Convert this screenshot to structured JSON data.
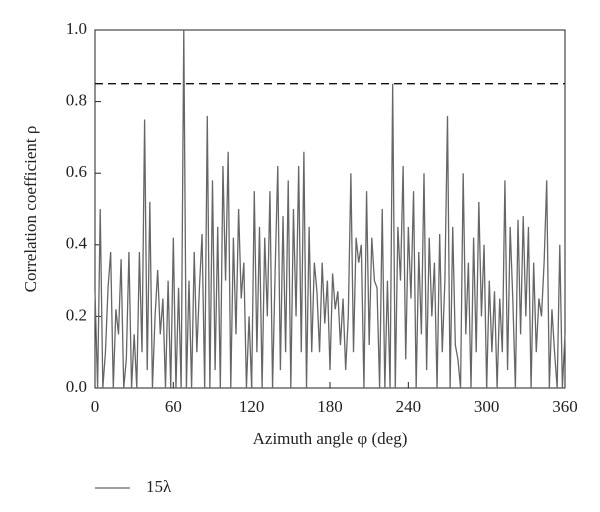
{
  "chart_data": {
    "type": "line",
    "xlabel": "Azimuth angle φ (deg)",
    "ylabel": "Correlation coefficient ρ",
    "x": [
      0,
      2,
      4,
      6,
      8,
      10,
      12,
      14,
      16,
      18,
      20,
      22,
      24,
      26,
      28,
      30,
      32,
      34,
      36,
      38,
      40,
      42,
      44,
      46,
      48,
      50,
      52,
      54,
      56,
      58,
      60,
      62,
      64,
      66,
      68,
      70,
      72,
      74,
      76,
      78,
      80,
      82,
      84,
      86,
      88,
      90,
      92,
      94,
      96,
      98,
      100,
      102,
      104,
      106,
      108,
      110,
      112,
      114,
      116,
      118,
      120,
      122,
      124,
      126,
      128,
      130,
      132,
      134,
      136,
      138,
      140,
      142,
      144,
      146,
      148,
      150,
      152,
      154,
      156,
      158,
      160,
      162,
      164,
      166,
      168,
      170,
      172,
      174,
      176,
      178,
      180,
      182,
      184,
      186,
      188,
      190,
      192,
      194,
      196,
      198,
      200,
      202,
      204,
      206,
      208,
      210,
      212,
      214,
      216,
      218,
      220,
      222,
      224,
      226,
      228,
      230,
      232,
      234,
      236,
      238,
      240,
      242,
      244,
      246,
      248,
      250,
      252,
      254,
      256,
      258,
      260,
      262,
      264,
      266,
      268,
      270,
      272,
      274,
      276,
      278,
      280,
      282,
      284,
      286,
      288,
      290,
      292,
      294,
      296,
      298,
      300,
      302,
      304,
      306,
      308,
      310,
      312,
      314,
      316,
      318,
      320,
      322,
      324,
      326,
      328,
      330,
      332,
      334,
      336,
      338,
      340,
      342,
      344,
      346,
      348,
      350,
      352,
      354,
      356,
      358,
      360
    ],
    "series": [
      {
        "name": "15λ",
        "color": "#666666",
        "values": [
          0.27,
          0.0,
          0.5,
          0.0,
          0.1,
          0.28,
          0.38,
          0.0,
          0.22,
          0.15,
          0.36,
          0.0,
          0.08,
          0.38,
          0.0,
          0.15,
          0.0,
          0.38,
          0.1,
          0.75,
          0.05,
          0.52,
          0.0,
          0.2,
          0.33,
          0.15,
          0.25,
          0.0,
          0.3,
          0.0,
          0.42,
          0.0,
          0.28,
          0.0,
          1.0,
          0.0,
          0.3,
          0.0,
          0.38,
          0.1,
          0.28,
          0.43,
          0.0,
          0.76,
          0.0,
          0.58,
          0.05,
          0.45,
          0.0,
          0.62,
          0.3,
          0.66,
          0.0,
          0.42,
          0.15,
          0.5,
          0.25,
          0.35,
          0.0,
          0.2,
          0.0,
          0.55,
          0.1,
          0.45,
          0.0,
          0.42,
          0.2,
          0.55,
          0.0,
          0.33,
          0.62,
          0.05,
          0.48,
          0.1,
          0.58,
          0.0,
          0.5,
          0.2,
          0.62,
          0.1,
          0.66,
          0.0,
          0.45,
          0.1,
          0.35,
          0.27,
          0.1,
          0.35,
          0.18,
          0.3,
          0.05,
          0.32,
          0.22,
          0.27,
          0.12,
          0.25,
          0.05,
          0.2,
          0.6,
          0.1,
          0.42,
          0.35,
          0.4,
          0.0,
          0.55,
          0.12,
          0.42,
          0.3,
          0.28,
          0.0,
          0.5,
          0.0,
          0.3,
          0.0,
          0.85,
          0.0,
          0.45,
          0.3,
          0.62,
          0.08,
          0.45,
          0.25,
          0.55,
          0.0,
          0.38,
          0.15,
          0.6,
          0.05,
          0.42,
          0.2,
          0.35,
          0.0,
          0.43,
          0.1,
          0.3,
          0.76,
          0.0,
          0.45,
          0.12,
          0.08,
          0.0,
          0.6,
          0.15,
          0.35,
          0.0,
          0.42,
          0.1,
          0.52,
          0.2,
          0.4,
          0.0,
          0.3,
          0.1,
          0.27,
          0.0,
          0.25,
          0.1,
          0.58,
          0.05,
          0.45,
          0.25,
          0.0,
          0.47,
          0.15,
          0.48,
          0.2,
          0.45,
          0.0,
          0.35,
          0.1,
          0.25,
          0.2,
          0.35,
          0.58,
          0.0,
          0.22,
          0.1,
          0.0,
          0.4,
          0.0,
          0.15
        ]
      }
    ],
    "threshold": 0.85,
    "xlim": [
      0,
      360
    ],
    "xticks": [
      0,
      60,
      120,
      180,
      240,
      300,
      360
    ],
    "ylim": [
      0,
      1
    ],
    "yticks": [
      {
        "value": 0,
        "label": "0.0"
      },
      0.2,
      0.4,
      0.6,
      0.8,
      {
        "value": 1,
        "label": "1.0"
      }
    ]
  }
}
